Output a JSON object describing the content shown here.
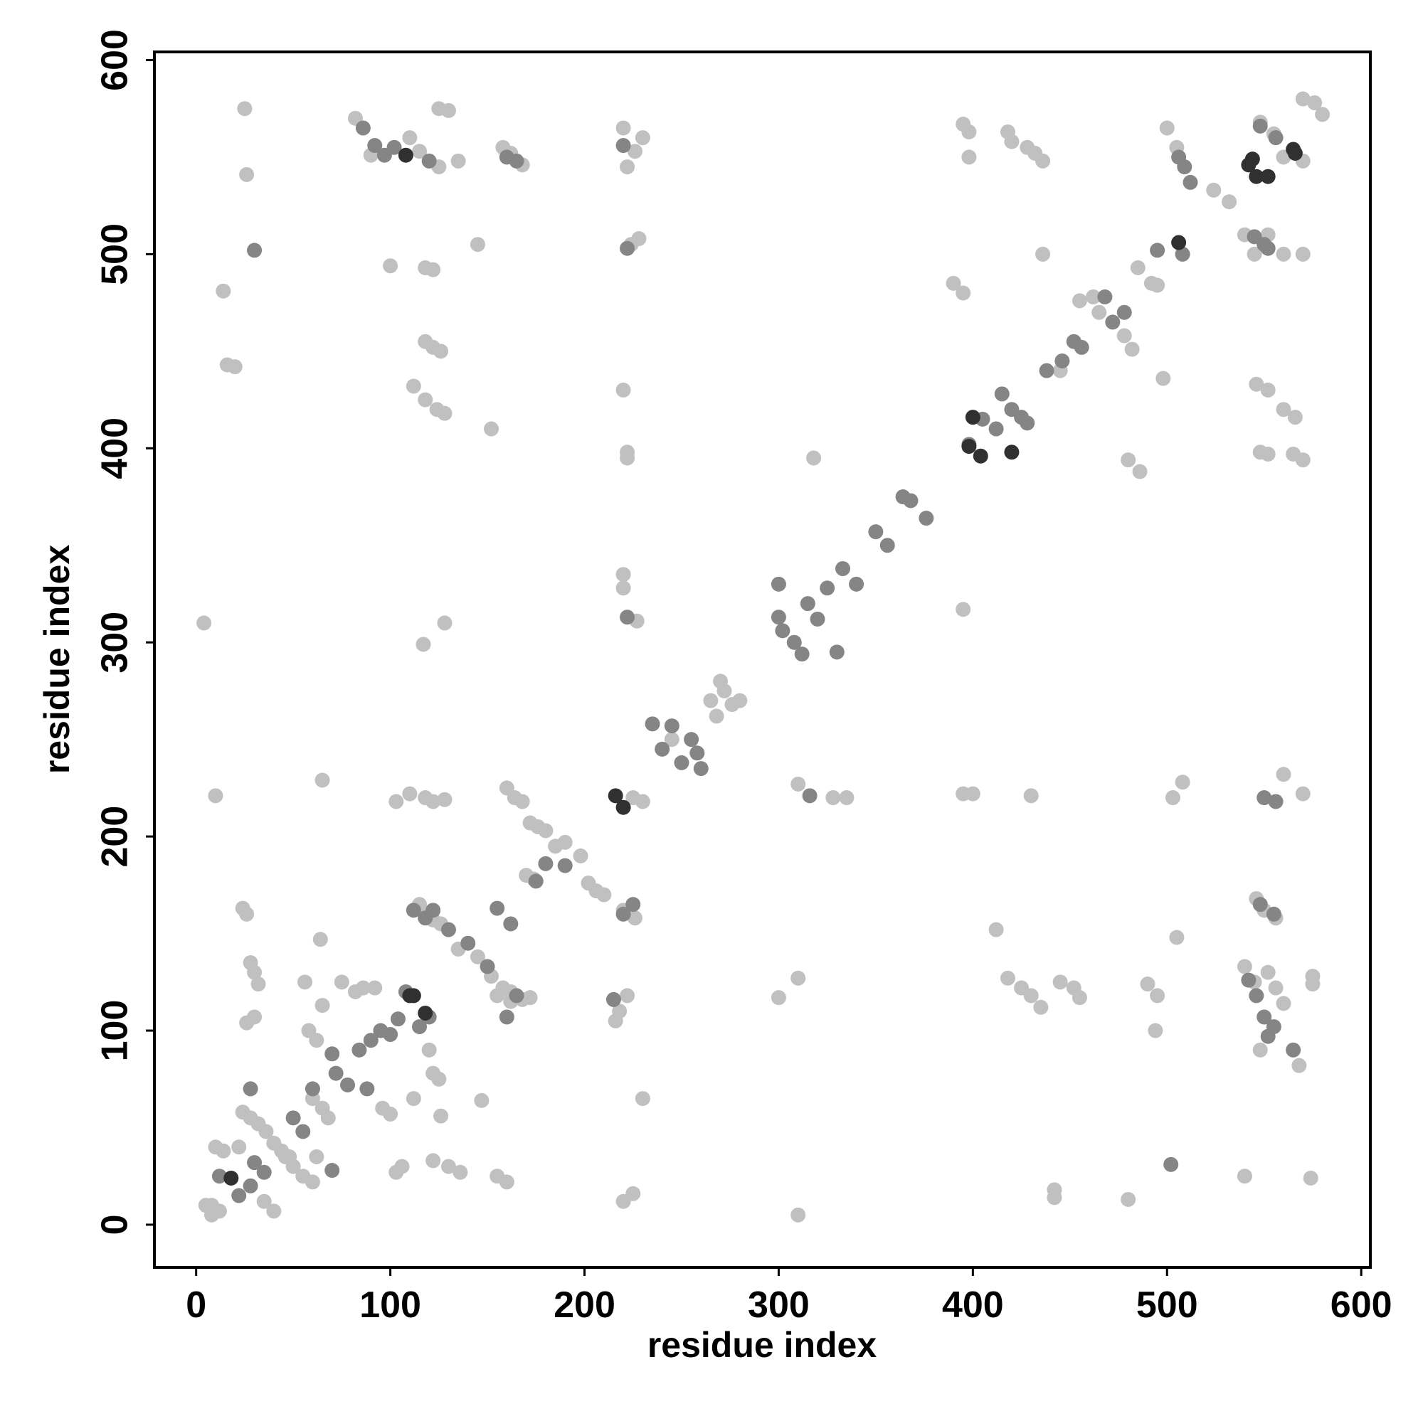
{
  "chart_data": {
    "type": "scatter",
    "xlabel": "residue index",
    "ylabel": "residue index",
    "xlim": [
      -21.5,
      604.7
    ],
    "ylim": [
      -22,
      604.2
    ],
    "xticks": [
      0,
      100,
      200,
      300,
      400,
      500,
      600
    ],
    "yticks": [
      0,
      100,
      200,
      300,
      400,
      500,
      600
    ],
    "series": [
      {
        "color": "#c0c0c0",
        "x": [
          25,
          26,
          14,
          16,
          20,
          4,
          10,
          65,
          24,
          26,
          28,
          30,
          32,
          26,
          30,
          56,
          65,
          64,
          58,
          62,
          75,
          82,
          86,
          92,
          96,
          100,
          103,
          106,
          112,
          120,
          122,
          125,
          126,
          122,
          130,
          136,
          147,
          145,
          152,
          100,
          118,
          122,
          118,
          122,
          126,
          112,
          118,
          124,
          128,
          117,
          128,
          110,
          115,
          125,
          130,
          125,
          135,
          82,
          90,
          103,
          110,
          118,
          122,
          128,
          160,
          164,
          168,
          172,
          176,
          180,
          185,
          190,
          198,
          202,
          206,
          210,
          170,
          174,
          155,
          158,
          162,
          168,
          172,
          158,
          162,
          168,
          155,
          160,
          220,
          222,
          226,
          230,
          224,
          228,
          220,
          222,
          222,
          220,
          220,
          227,
          230,
          225,
          230,
          218,
          222,
          216,
          220,
          225,
          220,
          226,
          265,
          270,
          272,
          276,
          280,
          268,
          245,
          300,
          310,
          310,
          318,
          328,
          335,
          310,
          395,
          398,
          398,
          395,
          390,
          395,
          395,
          400,
          412,
          418,
          420,
          428,
          432,
          436,
          436,
          418,
          425,
          430,
          435,
          445,
          452,
          455,
          442,
          442,
          430,
          445,
          455,
          462,
          465,
          478,
          482,
          485,
          480,
          486,
          492,
          495,
          490,
          495,
          494,
          480,
          498,
          500,
          505,
          505,
          503,
          508,
          524,
          532,
          540,
          545,
          552,
          560,
          570,
          548,
          555,
          560,
          570,
          570,
          576,
          580,
          546,
          552,
          560,
          566,
          548,
          552,
          565,
          570,
          546,
          550,
          556,
          540,
          545,
          552,
          556,
          560,
          570,
          560,
          575,
          575,
          574,
          540,
          548,
          568,
          5,
          8,
          12,
          35,
          40,
          46,
          50,
          55,
          60,
          62,
          24,
          28,
          32,
          36,
          40,
          44,
          48,
          60,
          65,
          68,
          22,
          10,
          14,
          115,
          118,
          122,
          126,
          135,
          145,
          152,
          162,
          8
        ],
        "values": [
          575,
          541,
          481,
          443,
          442,
          310,
          221,
          229,
          163,
          160,
          135,
          130,
          124,
          104,
          107,
          125,
          113,
          147,
          100,
          95,
          125,
          120,
          122,
          122,
          60,
          57,
          27,
          30,
          65,
          90,
          78,
          75,
          56,
          33,
          30,
          27,
          64,
          505,
          410,
          494,
          493,
          492,
          455,
          452,
          450,
          432,
          425,
          420,
          418,
          299,
          310,
          560,
          553,
          575,
          574,
          545,
          548,
          570,
          551,
          218,
          222,
          220,
          218,
          219,
          225,
          220,
          218,
          207,
          205,
          203,
          195,
          197,
          190,
          176,
          172,
          170,
          180,
          178,
          118,
          122,
          115,
          116,
          117,
          555,
          552,
          546,
          25,
          22,
          565,
          545,
          553,
          560,
          505,
          508,
          430,
          398,
          395,
          335,
          328,
          311,
          65,
          220,
          218,
          110,
          118,
          105,
          12,
          16,
          162,
          158,
          270,
          280,
          275,
          268,
          270,
          262,
          250,
          117,
          127,
          227,
          395,
          220,
          220,
          5,
          567,
          563,
          550,
          480,
          485,
          317,
          222,
          222,
          152,
          563,
          558,
          555,
          552,
          548,
          500,
          127,
          122,
          118,
          112,
          125,
          122,
          117,
          18,
          14,
          221,
          440,
          476,
          478,
          470,
          458,
          451,
          493,
          394,
          388,
          485,
          484,
          124,
          118,
          100,
          13,
          436,
          565,
          555,
          148,
          220,
          228,
          533,
          527,
          510,
          500,
          510,
          500,
          500,
          568,
          562,
          550,
          548,
          580,
          578,
          572,
          433,
          430,
          420,
          416,
          398,
          397,
          397,
          394,
          168,
          162,
          158,
          133,
          125,
          130,
          122,
          114,
          222,
          232,
          128,
          124,
          24,
          25,
          90,
          82,
          10,
          5,
          7,
          12,
          7,
          35,
          30,
          25,
          22,
          35,
          58,
          55,
          52,
          48,
          42,
          38,
          35,
          65,
          60,
          55,
          40,
          40,
          38,
          165,
          160,
          157,
          155,
          142,
          138,
          128,
          120,
          10
        ]
      },
      {
        "color": "#858585",
        "x": [
          12,
          22,
          28,
          30,
          35,
          28,
          50,
          55,
          60,
          70,
          72,
          78,
          84,
          90,
          95,
          100,
          104,
          108,
          115,
          120,
          88,
          70,
          118,
          112,
          122,
          130,
          140,
          150,
          155,
          160,
          162,
          165,
          175,
          180,
          190,
          215,
          220,
          225,
          235,
          240,
          245,
          250,
          255,
          258,
          260,
          220,
          222,
          300,
          300,
          302,
          308,
          312,
          315,
          320,
          325,
          330,
          333,
          340,
          350,
          356,
          364,
          368,
          376,
          398,
          405,
          412,
          415,
          420,
          425,
          428,
          438,
          446,
          452,
          456,
          468,
          472,
          478,
          495,
          508,
          506,
          509,
          512,
          548,
          556,
          545,
          550,
          552,
          542,
          546,
          550,
          552,
          555,
          565,
          548,
          555,
          550,
          556,
          316,
          222,
          97,
          92,
          86,
          102,
          120,
          30,
          502,
          160,
          165
        ],
        "values": [
          25,
          15,
          20,
          32,
          27,
          70,
          55,
          48,
          70,
          88,
          78,
          72,
          90,
          95,
          100,
          98,
          106,
          120,
          102,
          107,
          70,
          28,
          158,
          162,
          162,
          152,
          145,
          133,
          163,
          107,
          155,
          118,
          177,
          186,
          185,
          116,
          160,
          165,
          258,
          245,
          257,
          238,
          250,
          243,
          235,
          556,
          503,
          330,
          313,
          306,
          300,
          294,
          320,
          312,
          328,
          295,
          338,
          330,
          357,
          350,
          375,
          373,
          364,
          402,
          415,
          410,
          428,
          420,
          416,
          413,
          440,
          445,
          455,
          452,
          478,
          465,
          470,
          502,
          500,
          550,
          545,
          537,
          566,
          560,
          509,
          505,
          503,
          126,
          118,
          107,
          97,
          102,
          90,
          165,
          160,
          220,
          218,
          221,
          313,
          551,
          556,
          565,
          555,
          548,
          502,
          31,
          550,
          548
        ]
      },
      {
        "color": "#303030",
        "x": [
          18,
          110,
          112,
          118,
          108,
          216,
          220,
          400,
          398,
          420,
          506,
          546,
          542,
          552,
          544,
          565,
          566,
          404
        ],
        "values": [
          24,
          118,
          118,
          109,
          551,
          221,
          215,
          416,
          401,
          398,
          506,
          540,
          546,
          540,
          549,
          554,
          552,
          396
        ]
      }
    ]
  }
}
